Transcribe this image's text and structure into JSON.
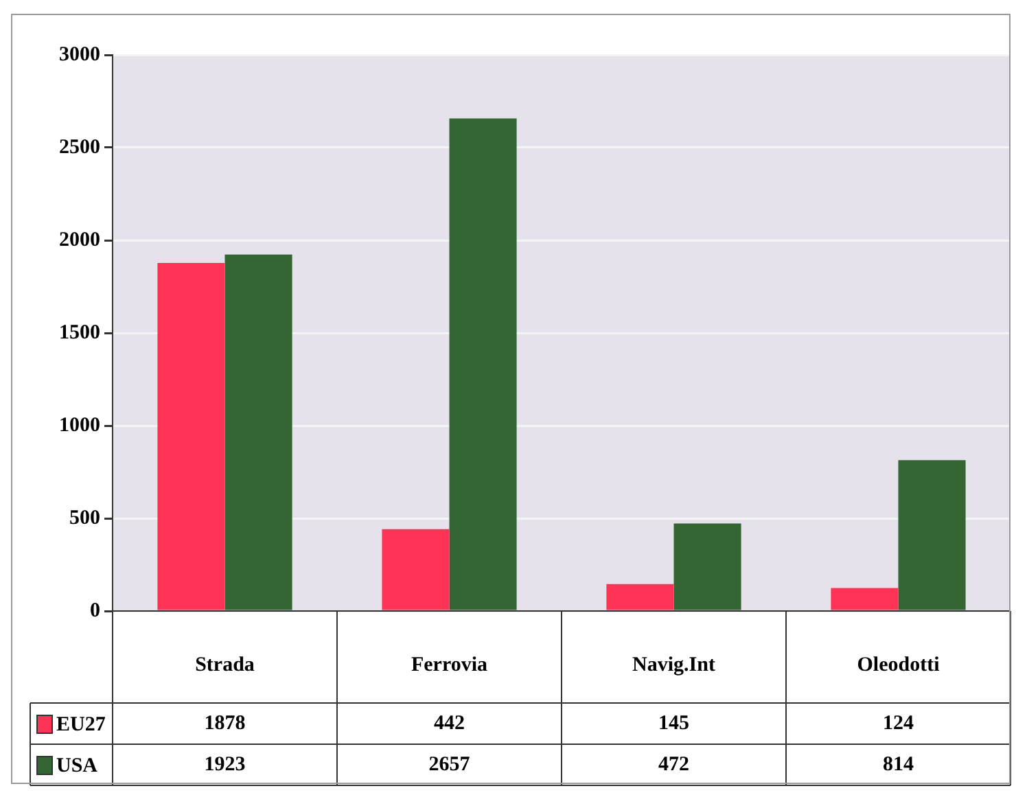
{
  "chart_data": {
    "type": "bar",
    "categories": [
      "Strada",
      "Ferrovia",
      "Navig.Int",
      "Oleodotti"
    ],
    "series": [
      {
        "name": "EU27",
        "color": "#ff3355",
        "values": [
          1878,
          442,
          145,
          124
        ]
      },
      {
        "name": "USA",
        "color": "#336633",
        "values": [
          1923,
          2657,
          472,
          814
        ]
      }
    ],
    "ylim": [
      0,
      3000
    ],
    "yticks": [
      0,
      500,
      1000,
      1500,
      2000,
      2500,
      3000
    ],
    "grid": "y",
    "legend": "bottom left",
    "data_labels": true
  }
}
